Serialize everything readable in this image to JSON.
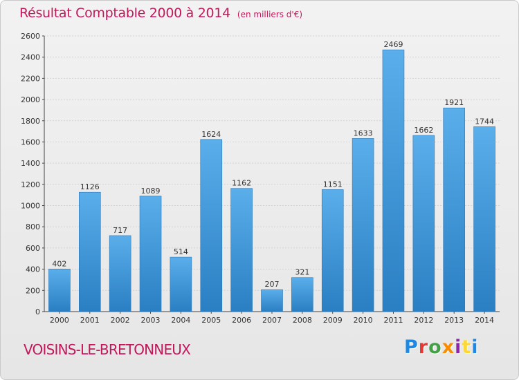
{
  "title": "Résultat Comptable 2000 à 2014",
  "subtitle": "(en milliers d'€)",
  "footer": {
    "city": "VOISINS-LE-BRETONNEUX",
    "logo_letters": [
      "P",
      "r",
      "o",
      "x",
      "i",
      "t",
      "i"
    ]
  },
  "colors": {
    "bar_light": "#5aaeea",
    "bar_dark": "#2a7fc3",
    "title": "#c2185b",
    "grid": "#d3d3d3"
  },
  "chart_data": {
    "type": "bar",
    "title": "Résultat Comptable 2000 à 2014",
    "subtitle": "(en milliers d'€)",
    "categories": [
      "2000",
      "2001",
      "2002",
      "2003",
      "2004",
      "2005",
      "2006",
      "2007",
      "2008",
      "2009",
      "2010",
      "2011",
      "2012",
      "2013",
      "2014"
    ],
    "values": [
      402,
      1126,
      717,
      1089,
      514,
      1624,
      1162,
      207,
      321,
      1151,
      1633,
      2469,
      1662,
      1921,
      1744
    ],
    "ylim": [
      0,
      2600
    ],
    "yticks": [
      0,
      200,
      400,
      600,
      800,
      1000,
      1200,
      1400,
      1600,
      1800,
      2000,
      2200,
      2400,
      2600
    ],
    "grid": true,
    "data_labels": true
  }
}
